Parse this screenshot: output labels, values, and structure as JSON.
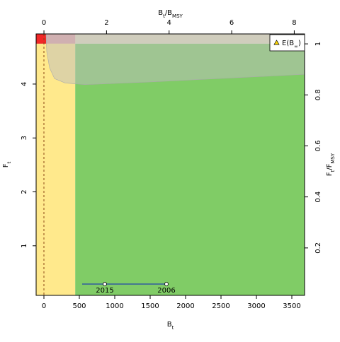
{
  "chart_data": {
    "type": "kobe",
    "xlabel": [
      "B",
      "t"
    ],
    "ylabel": [
      "F",
      "t"
    ],
    "x2label": [
      "B",
      "t",
      "/B",
      "MSY"
    ],
    "y2label": [
      "F",
      "t",
      "/F",
      "MSY"
    ],
    "xlim": [
      -110,
      3680
    ],
    "xticks": [
      0,
      500,
      1000,
      1500,
      2000,
      2500,
      3000,
      3500
    ],
    "ylim": [
      0.08,
      4.93
    ],
    "yticks": [
      1,
      2,
      3,
      4
    ],
    "x2lim": [
      -0.25,
      8.33
    ],
    "x2ticks": [
      0,
      2,
      4,
      6,
      8
    ],
    "y2lim": [
      0.014,
      1.039
    ],
    "y2ticks": [
      0.2,
      0.4,
      0.6,
      0.8,
      1
    ],
    "bmsy": 442,
    "fmsy": 4.75,
    "ci_region": {
      "x": [
        30,
        40,
        80,
        150,
        300,
        580,
        1500,
        3680
      ],
      "y": [
        4.93,
        4.6,
        4.3,
        4.1,
        4.02,
        3.99,
        4.04,
        4.18
      ]
    },
    "track": {
      "color": "#2244aa",
      "x": [
        540,
        860,
        1730
      ],
      "y": [
        0.29,
        0.29,
        0.29
      ]
    },
    "points": [
      {
        "label": "2015",
        "x": 860,
        "y": 0.29
      },
      {
        "label": "2006",
        "x": 1730,
        "y": 0.29
      }
    ],
    "legend": {
      "label": [
        "E(B",
        "∞",
        ")"
      ],
      "position": "top-right"
    }
  }
}
